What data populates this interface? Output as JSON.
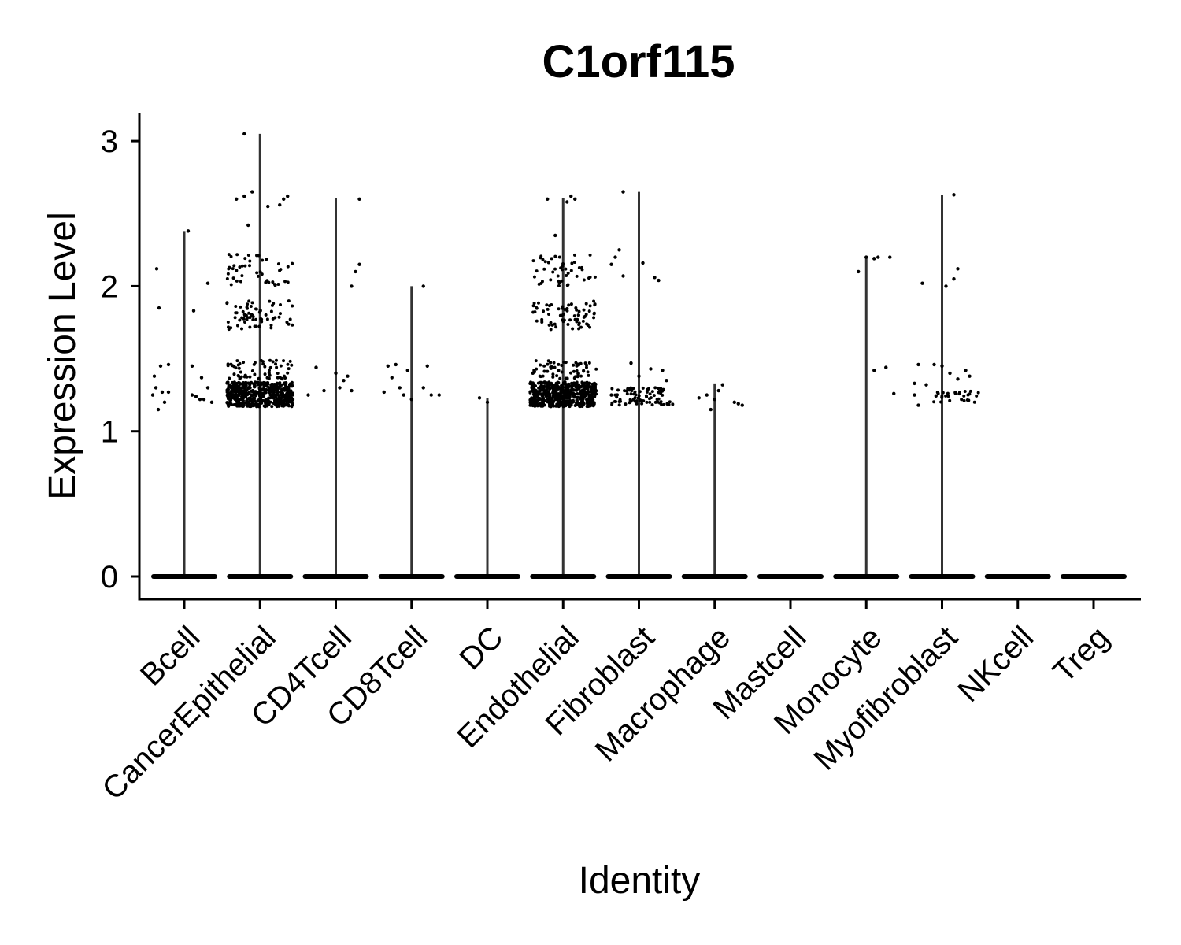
{
  "chart_data": {
    "type": "violin",
    "title": "C1orf115",
    "xlabel": "Identity",
    "ylabel": "Expression Level",
    "ylim": [
      -0.15,
      3.2
    ],
    "yticks": [
      0,
      1,
      2,
      3
    ],
    "categories": [
      "Bcell",
      "CancerEpithelial",
      "CD4Tcell",
      "CD8Tcell",
      "DC",
      "Endothelial",
      "Fibroblast",
      "Macrophage",
      "Mastcell",
      "Monocyte",
      "Myofibroblast",
      "NKcell",
      "Treg"
    ],
    "violin_max": [
      2.38,
      3.05,
      2.61,
      2.0,
      1.23,
      2.61,
      2.65,
      1.33,
      0,
      2.2,
      2.63,
      0,
      0
    ],
    "expressing_points": [
      [
        [
          -0.35,
          2.12
        ],
        [
          -0.32,
          1.85
        ],
        [
          -0.38,
          1.38
        ],
        [
          -0.3,
          1.45
        ],
        [
          -0.2,
          1.46
        ],
        [
          -0.36,
          1.3
        ],
        [
          -0.28,
          1.27
        ],
        [
          -0.25,
          1.2
        ],
        [
          -0.33,
          1.15
        ],
        [
          -0.4,
          1.25
        ],
        [
          0.05,
          2.38
        ],
        [
          0.1,
          1.45
        ],
        [
          0.15,
          1.24
        ],
        [
          0.2,
          1.22
        ],
        [
          0.3,
          1.3
        ],
        [
          0.3,
          2.02
        ],
        [
          0.35,
          1.2
        ],
        [
          0.25,
          1.22
        ],
        [
          0.12,
          1.83
        ],
        [
          0.22,
          1.37
        ],
        [
          -0.2,
          1.27
        ],
        [
          0.1,
          1.25
        ]
      ],
      [
        [
          -0.2,
          3.05
        ],
        [
          -0.3,
          2.6
        ],
        [
          -0.2,
          2.62
        ],
        [
          -0.1,
          2.65
        ],
        [
          0.1,
          2.55
        ],
        [
          0.3,
          2.6
        ],
        [
          0.35,
          2.62
        ],
        [
          -0.15,
          2.42
        ],
        [
          0.25,
          2.56
        ]
      ],
      [
        [
          -0.25,
          1.44
        ],
        [
          -0.15,
          1.28
        ],
        [
          0.0,
          1.4
        ],
        [
          0.1,
          1.35
        ],
        [
          0.2,
          1.28
        ],
        [
          0.3,
          2.6
        ],
        [
          0.3,
          2.15
        ],
        [
          0.25,
          2.1
        ],
        [
          0.2,
          2.0
        ],
        [
          -0.35,
          1.25
        ],
        [
          0.05,
          1.3
        ],
        [
          0.15,
          1.38
        ]
      ],
      [
        [
          -0.3,
          1.45
        ],
        [
          -0.2,
          1.46
        ],
        [
          -0.25,
          1.37
        ],
        [
          -0.15,
          1.3
        ],
        [
          -0.1,
          1.25
        ],
        [
          0.0,
          1.22
        ],
        [
          0.15,
          1.3
        ],
        [
          0.15,
          2.0
        ],
        [
          0.2,
          1.45
        ],
        [
          0.25,
          1.25
        ],
        [
          0.35,
          1.25
        ],
        [
          -0.35,
          1.27
        ],
        [
          -0.05,
          1.42
        ]
      ],
      [
        [
          -0.1,
          1.23
        ],
        [
          0.0,
          1.2
        ]
      ],
      [
        [
          -0.1,
          2.35
        ],
        [
          -0.2,
          2.6
        ],
        [
          0.1,
          2.62
        ],
        [
          0.15,
          2.6
        ],
        [
          0.05,
          2.58
        ]
      ],
      [
        [
          -0.3,
          2.2
        ],
        [
          -0.25,
          2.25
        ],
        [
          -0.2,
          2.07
        ],
        [
          -0.35,
          2.15
        ],
        [
          0.05,
          2.16
        ],
        [
          0.2,
          2.06
        ],
        [
          0.25,
          2.04
        ],
        [
          -0.2,
          2.65
        ],
        [
          -0.1,
          1.47
        ],
        [
          0.0,
          1.38
        ],
        [
          0.15,
          1.43
        ],
        [
          0.3,
          1.42
        ],
        [
          -0.35,
          1.25
        ],
        [
          0.35,
          1.35
        ]
      ],
      [
        [
          -0.2,
          1.23
        ],
        [
          -0.1,
          1.25
        ],
        [
          0.0,
          1.22
        ],
        [
          0.1,
          1.32
        ],
        [
          0.25,
          1.2
        ],
        [
          0.3,
          1.19
        ],
        [
          0.35,
          1.18
        ],
        [
          -0.05,
          1.15
        ],
        [
          0.05,
          1.28
        ]
      ],
      [],
      [
        [
          -0.1,
          2.1
        ],
        [
          0.0,
          2.2
        ],
        [
          0.1,
          2.19
        ],
        [
          0.15,
          2.2
        ],
        [
          0.3,
          2.2
        ],
        [
          0.1,
          1.42
        ],
        [
          0.25,
          1.44
        ],
        [
          0.35,
          1.26
        ]
      ],
      [
        [
          -0.25,
          2.02
        ],
        [
          0.05,
          2.0
        ],
        [
          0.15,
          2.05
        ],
        [
          0.2,
          2.12
        ],
        [
          0.15,
          2.63
        ],
        [
          -0.3,
          1.46
        ],
        [
          -0.1,
          1.46
        ],
        [
          -0.2,
          1.32
        ],
        [
          -0.35,
          1.25
        ],
        [
          -0.3,
          1.18
        ],
        [
          0.0,
          1.45
        ],
        [
          0.1,
          1.4
        ],
        [
          0.3,
          1.42
        ],
        [
          0.35,
          1.38
        ],
        [
          -0.35,
          1.33
        ],
        [
          0.2,
          1.36
        ]
      ],
      [],
      []
    ]
  }
}
